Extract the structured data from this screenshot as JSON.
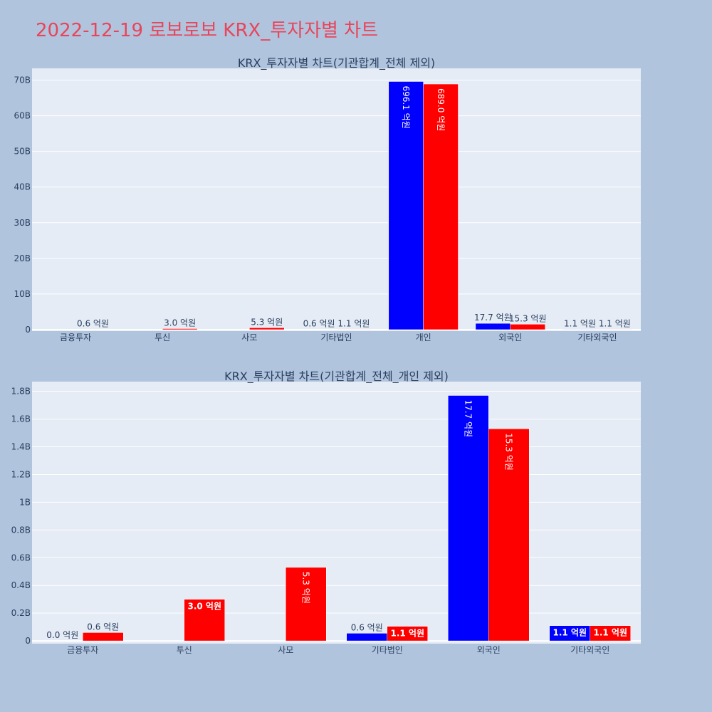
{
  "page": {
    "title": "2022-12-19 로보로보 KRX_투자자별 차트",
    "title_color": "#e8455a",
    "background": "#b0c4de",
    "plot_background": "#e5ecf6"
  },
  "chart_data": [
    {
      "type": "bar",
      "title": "KRX_투자자별 차트(기관합계_전체 제외)",
      "categories": [
        "금융투자",
        "투신",
        "사모",
        "기타법인",
        "개인",
        "외국인",
        "기타외국인"
      ],
      "series": [
        {
          "color": "#0000ff",
          "values": [
            0,
            0,
            0,
            0.06,
            69.61,
            1.77,
            0.11
          ],
          "labels": [
            "",
            "",
            "",
            "0.6 억원",
            "696.1 억원",
            "17.7 억원",
            "1.1 억원"
          ]
        },
        {
          "color": "#ff0000",
          "values": [
            0.06,
            0.3,
            0.53,
            0.11,
            68.9,
            1.53,
            0.11
          ],
          "labels": [
            "0.6 억원",
            "3.0 억원",
            "5.3 억원",
            "1.1 억원",
            "689.0 억원",
            "15.3 억원",
            "1.1 억원"
          ]
        }
      ],
      "ytick_values": [
        0,
        10,
        20,
        30,
        40,
        50,
        60,
        70
      ],
      "ytick_labels": [
        "0",
        "10B",
        "20B",
        "30B",
        "40B",
        "50B",
        "60B",
        "70B"
      ],
      "ylim": [
        -0.4,
        73.3
      ],
      "grid": true
    },
    {
      "type": "bar",
      "title": "KRX_투자자별 차트(기관합계_전체_개인 제외)",
      "categories": [
        "금융투자",
        "투신",
        "사모",
        "기타법인",
        "외국인",
        "기타외국인"
      ],
      "series": [
        {
          "color": "#0000ff",
          "values": [
            0,
            0,
            0,
            0.055,
            1.77,
            0.11
          ],
          "labels": [
            "0.0 억원",
            "",
            "",
            "0.6 억원",
            "17.7 억원",
            "1.1 억원"
          ]
        },
        {
          "color": "#ff0000",
          "values": [
            0.06,
            0.3,
            0.53,
            0.105,
            1.53,
            0.11
          ],
          "labels": [
            "0.6 억원",
            "3.0 억원",
            "5.3 억원",
            "1.1 억원",
            "15.3 억원",
            "1.1 억원"
          ]
        }
      ],
      "ytick_values": [
        0,
        0.2,
        0.4,
        0.6,
        0.8,
        1.0,
        1.2,
        1.4,
        1.6,
        1.8
      ],
      "ytick_labels": [
        "0",
        "0.2B",
        "0.4B",
        "0.6B",
        "0.8B",
        "1B",
        "1.2B",
        "1.4B",
        "1.6B",
        "1.8B"
      ],
      "ylim": [
        -0.02,
        1.87
      ],
      "grid": true
    }
  ]
}
